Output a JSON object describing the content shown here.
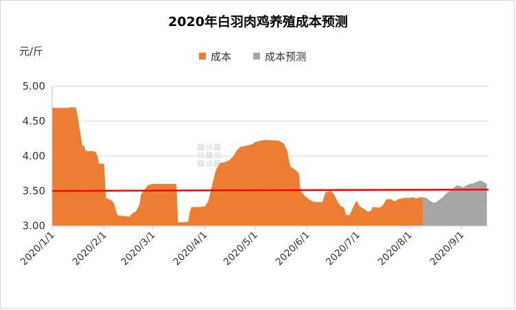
{
  "chart_data": {
    "type": "area",
    "title": "2020年白羽肉鸡养殖成本预测",
    "ylabel": "元/斤",
    "xlabel": "",
    "ylim": [
      3.0,
      5.0
    ],
    "yticks": [
      "3.00",
      "3.50",
      "4.00",
      "4.50",
      "5.00"
    ],
    "xticks": [
      {
        "label": "2020/1/1",
        "day": 0
      },
      {
        "label": "2020/2/1",
        "day": 31
      },
      {
        "label": "2020/3/1",
        "day": 60
      },
      {
        "label": "2020/4/1",
        "day": 91
      },
      {
        "label": "2020/5/1",
        "day": 121
      },
      {
        "label": "2020/6/1",
        "day": 152
      },
      {
        "label": "2020/7/1",
        "day": 182
      },
      {
        "label": "2020/8/1",
        "day": 213
      },
      {
        "label": "2020/9/1",
        "day": 244
      }
    ],
    "x_range_days": [
      0,
      260
    ],
    "grid": "horizontal",
    "legend_position": "top-center",
    "series": [
      {
        "name": "成本",
        "color": "#ed7d31",
        "points": [
          [
            0,
            4.69
          ],
          [
            10,
            4.69
          ],
          [
            11,
            4.7
          ],
          [
            14,
            4.7
          ],
          [
            15,
            4.6
          ],
          [
            16,
            4.45
          ],
          [
            17,
            4.3
          ],
          [
            18,
            4.15
          ],
          [
            19,
            4.15
          ],
          [
            20,
            4.07
          ],
          [
            24,
            4.07
          ],
          [
            26,
            4.06
          ],
          [
            27,
            4.0
          ],
          [
            28,
            3.89
          ],
          [
            31,
            3.89
          ],
          [
            32,
            3.4
          ],
          [
            34,
            3.38
          ],
          [
            36,
            3.35
          ],
          [
            37,
            3.31
          ],
          [
            38,
            3.22
          ],
          [
            39,
            3.15
          ],
          [
            43,
            3.14
          ],
          [
            46,
            3.13
          ],
          [
            47,
            3.16
          ],
          [
            48,
            3.18
          ],
          [
            50,
            3.21
          ],
          [
            52,
            3.3
          ],
          [
            53,
            3.45
          ],
          [
            55,
            3.52
          ],
          [
            57,
            3.58
          ],
          [
            60,
            3.6
          ],
          [
            66,
            3.6
          ],
          [
            74,
            3.6
          ],
          [
            75,
            3.05
          ],
          [
            78,
            3.05
          ],
          [
            81,
            3.06
          ],
          [
            82,
            3.2
          ],
          [
            83,
            3.27
          ],
          [
            88,
            3.27
          ],
          [
            91,
            3.28
          ],
          [
            93,
            3.35
          ],
          [
            95,
            3.55
          ],
          [
            97,
            3.75
          ],
          [
            98,
            3.82
          ],
          [
            100,
            3.9
          ],
          [
            104,
            3.92
          ],
          [
            106,
            3.95
          ],
          [
            108,
            4.0
          ],
          [
            110,
            4.08
          ],
          [
            112,
            4.13
          ],
          [
            116,
            4.15
          ],
          [
            119,
            4.17
          ],
          [
            121,
            4.2
          ],
          [
            124,
            4.22
          ],
          [
            127,
            4.23
          ],
          [
            135,
            4.22
          ],
          [
            138,
            4.18
          ],
          [
            140,
            4.08
          ],
          [
            141,
            3.95
          ],
          [
            142,
            3.85
          ],
          [
            145,
            3.8
          ],
          [
            147,
            3.75
          ],
          [
            148,
            3.5
          ],
          [
            151,
            3.42
          ],
          [
            153,
            3.38
          ],
          [
            155,
            3.35
          ],
          [
            157,
            3.34
          ],
          [
            161,
            3.34
          ],
          [
            162,
            3.42
          ],
          [
            163,
            3.48
          ],
          [
            166,
            3.5
          ],
          [
            168,
            3.45
          ],
          [
            170,
            3.35
          ],
          [
            172,
            3.28
          ],
          [
            174,
            3.26
          ],
          [
            175,
            3.16
          ],
          [
            177,
            3.15
          ],
          [
            179,
            3.25
          ],
          [
            181,
            3.35
          ],
          [
            182,
            3.34
          ],
          [
            183,
            3.28
          ],
          [
            186,
            3.24
          ],
          [
            188,
            3.2
          ],
          [
            190,
            3.22
          ],
          [
            191,
            3.27
          ],
          [
            195,
            3.26
          ],
          [
            197,
            3.29
          ],
          [
            199,
            3.38
          ],
          [
            202,
            3.38
          ],
          [
            204,
            3.35
          ],
          [
            206,
            3.38
          ],
          [
            210,
            3.4
          ],
          [
            213,
            3.4
          ],
          [
            215,
            3.41
          ],
          [
            217,
            3.39
          ],
          [
            219,
            3.41
          ],
          [
            221,
            3.41
          ]
        ]
      },
      {
        "name": "成本预测",
        "color": "#a5a5a5",
        "points": [
          [
            221,
            3.41
          ],
          [
            223,
            3.4
          ],
          [
            225,
            3.36
          ],
          [
            227,
            3.33
          ],
          [
            229,
            3.34
          ],
          [
            231,
            3.38
          ],
          [
            233,
            3.42
          ],
          [
            235,
            3.47
          ],
          [
            237,
            3.5
          ],
          [
            239,
            3.54
          ],
          [
            241,
            3.58
          ],
          [
            243,
            3.57
          ],
          [
            245,
            3.55
          ],
          [
            247,
            3.58
          ],
          [
            249,
            3.6
          ],
          [
            251,
            3.61
          ],
          [
            253,
            3.63
          ],
          [
            255,
            3.65
          ],
          [
            257,
            3.63
          ],
          [
            259,
            3.6
          ]
        ]
      }
    ],
    "reference_line": {
      "y_start": 3.5,
      "y_end": 3.52,
      "color": "#ff0000"
    }
  }
}
